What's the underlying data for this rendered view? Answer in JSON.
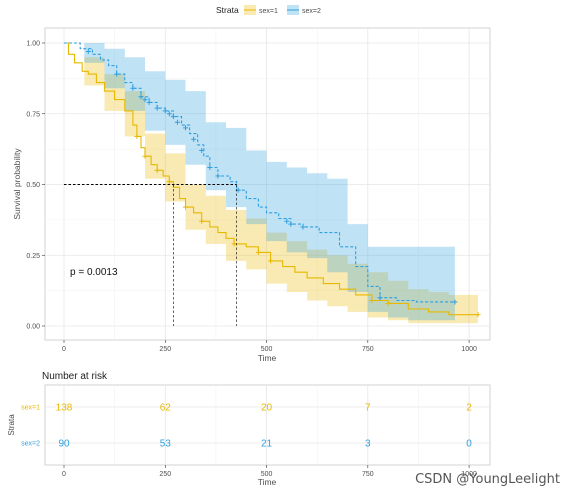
{
  "chart_data": {
    "type": "line",
    "subtype": "kaplan-meier",
    "legend": {
      "title": "Strata",
      "position": "top",
      "items": [
        {
          "name": "sex=1",
          "color": "#E7B800"
        },
        {
          "name": "sex=2",
          "color": "#2E9FDF"
        }
      ]
    },
    "xlabel": "Time",
    "ylabel": "Survival probability",
    "xlim": [
      0,
      1022
    ],
    "ylim": [
      0,
      1
    ],
    "xticks": [
      "0",
      "250",
      "500",
      "750",
      "1000"
    ],
    "yticks": [
      "0.00",
      "0.25",
      "0.50",
      "0.75",
      "1.00"
    ],
    "grid": true,
    "pvalue_label": "p = 0.0013",
    "median_line": {
      "y": 0.5,
      "x_values": [
        270,
        426
      ]
    },
    "series": [
      {
        "name": "sex=1",
        "color": "#E7B800",
        "steps": [
          [
            0,
            1.0
          ],
          [
            11,
            0.96
          ],
          [
            26,
            0.93
          ],
          [
            45,
            0.9
          ],
          [
            60,
            0.89
          ],
          [
            80,
            0.86
          ],
          [
            100,
            0.83
          ],
          [
            125,
            0.8
          ],
          [
            150,
            0.76
          ],
          [
            170,
            0.71
          ],
          [
            180,
            0.67
          ],
          [
            190,
            0.63
          ],
          [
            200,
            0.6
          ],
          [
            215,
            0.57
          ],
          [
            230,
            0.55
          ],
          [
            245,
            0.53
          ],
          [
            260,
            0.51
          ],
          [
            270,
            0.49
          ],
          [
            285,
            0.45
          ],
          [
            300,
            0.42
          ],
          [
            320,
            0.4
          ],
          [
            340,
            0.37
          ],
          [
            360,
            0.35
          ],
          [
            380,
            0.33
          ],
          [
            400,
            0.31
          ],
          [
            420,
            0.29
          ],
          [
            450,
            0.28
          ],
          [
            480,
            0.26
          ],
          [
            510,
            0.23
          ],
          [
            540,
            0.21
          ],
          [
            570,
            0.19
          ],
          [
            600,
            0.17
          ],
          [
            640,
            0.15
          ],
          [
            680,
            0.13
          ],
          [
            720,
            0.11
          ],
          [
            760,
            0.09
          ],
          [
            800,
            0.08
          ],
          [
            850,
            0.06
          ],
          [
            900,
            0.05
          ],
          [
            950,
            0.04
          ],
          [
            1022,
            0.04
          ]
        ],
        "ci_upper": [
          [
            0,
            1.0
          ],
          [
            50,
            0.95
          ],
          [
            100,
            0.89
          ],
          [
            150,
            0.83
          ],
          [
            200,
            0.68
          ],
          [
            250,
            0.61
          ],
          [
            300,
            0.5
          ],
          [
            350,
            0.46
          ],
          [
            400,
            0.41
          ],
          [
            450,
            0.38
          ],
          [
            500,
            0.33
          ],
          [
            550,
            0.3
          ],
          [
            600,
            0.27
          ],
          [
            650,
            0.25
          ],
          [
            700,
            0.22
          ],
          [
            750,
            0.19
          ],
          [
            800,
            0.16
          ],
          [
            850,
            0.13
          ],
          [
            900,
            0.12
          ],
          [
            950,
            0.11
          ],
          [
            1022,
            0.11
          ]
        ],
        "ci_lower": [
          [
            0,
            1.0
          ],
          [
            50,
            0.85
          ],
          [
            100,
            0.76
          ],
          [
            150,
            0.67
          ],
          [
            200,
            0.52
          ],
          [
            250,
            0.44
          ],
          [
            300,
            0.34
          ],
          [
            350,
            0.29
          ],
          [
            400,
            0.23
          ],
          [
            450,
            0.2
          ],
          [
            500,
            0.15
          ],
          [
            550,
            0.12
          ],
          [
            600,
            0.09
          ],
          [
            650,
            0.07
          ],
          [
            700,
            0.05
          ],
          [
            750,
            0.03
          ],
          [
            800,
            0.02
          ],
          [
            850,
            0.01
          ],
          [
            900,
            0.01
          ],
          [
            950,
            0.01
          ],
          [
            1022,
            0.01
          ]
        ],
        "censor": [
          [
            180,
            0.67
          ],
          [
            200,
            0.6
          ],
          [
            230,
            0.55
          ],
          [
            260,
            0.51
          ],
          [
            300,
            0.42
          ],
          [
            340,
            0.37
          ],
          [
            420,
            0.29
          ],
          [
            480,
            0.26
          ],
          [
            510,
            0.23
          ],
          [
            760,
            0.09
          ],
          [
            800,
            0.08
          ],
          [
            1022,
            0.04
          ]
        ]
      },
      {
        "name": "sex=2",
        "color": "#2E9FDF",
        "steps": [
          [
            0,
            1.0
          ],
          [
            40,
            0.98
          ],
          [
            70,
            0.96
          ],
          [
            90,
            0.94
          ],
          [
            110,
            0.92
          ],
          [
            130,
            0.89
          ],
          [
            150,
            0.86
          ],
          [
            170,
            0.84
          ],
          [
            190,
            0.81
          ],
          [
            210,
            0.79
          ],
          [
            230,
            0.77
          ],
          [
            250,
            0.76
          ],
          [
            270,
            0.74
          ],
          [
            290,
            0.71
          ],
          [
            310,
            0.68
          ],
          [
            330,
            0.64
          ],
          [
            345,
            0.6
          ],
          [
            360,
            0.56
          ],
          [
            380,
            0.53
          ],
          [
            410,
            0.51
          ],
          [
            426,
            0.48
          ],
          [
            450,
            0.45
          ],
          [
            480,
            0.42
          ],
          [
            500,
            0.4
          ],
          [
            530,
            0.38
          ],
          [
            560,
            0.36
          ],
          [
            590,
            0.35
          ],
          [
            630,
            0.33
          ],
          [
            680,
            0.28
          ],
          [
            720,
            0.21
          ],
          [
            750,
            0.14
          ],
          [
            780,
            0.1
          ],
          [
            820,
            0.09
          ],
          [
            870,
            0.085
          ],
          [
            965,
            0.085
          ]
        ],
        "ci_upper": [
          [
            0,
            1.0
          ],
          [
            50,
            1.0
          ],
          [
            100,
            0.98
          ],
          [
            150,
            0.95
          ],
          [
            200,
            0.9
          ],
          [
            250,
            0.87
          ],
          [
            300,
            0.83
          ],
          [
            350,
            0.72
          ],
          [
            400,
            0.7
          ],
          [
            450,
            0.62
          ],
          [
            500,
            0.58
          ],
          [
            550,
            0.56
          ],
          [
            600,
            0.54
          ],
          [
            650,
            0.52
          ],
          [
            700,
            0.36
          ],
          [
            750,
            0.28
          ],
          [
            800,
            0.28
          ],
          [
            850,
            0.28
          ],
          [
            900,
            0.28
          ],
          [
            965,
            0.28
          ]
        ],
        "ci_lower": [
          [
            0,
            1.0
          ],
          [
            50,
            0.93
          ],
          [
            100,
            0.84
          ],
          [
            150,
            0.76
          ],
          [
            200,
            0.69
          ],
          [
            250,
            0.64
          ],
          [
            300,
            0.57
          ],
          [
            350,
            0.48
          ],
          [
            400,
            0.42
          ],
          [
            450,
            0.36
          ],
          [
            500,
            0.3
          ],
          [
            550,
            0.26
          ],
          [
            600,
            0.24
          ],
          [
            650,
            0.19
          ],
          [
            700,
            0.12
          ],
          [
            750,
            0.05
          ],
          [
            800,
            0.03
          ],
          [
            850,
            0.02
          ],
          [
            900,
            0.02
          ],
          [
            965,
            0.02
          ]
        ],
        "censor": [
          [
            60,
            0.97
          ],
          [
            130,
            0.89
          ],
          [
            170,
            0.84
          ],
          [
            190,
            0.81
          ],
          [
            200,
            0.8
          ],
          [
            210,
            0.79
          ],
          [
            230,
            0.77
          ],
          [
            250,
            0.76
          ],
          [
            260,
            0.75
          ],
          [
            270,
            0.74
          ],
          [
            280,
            0.72
          ],
          [
            300,
            0.7
          ],
          [
            320,
            0.66
          ],
          [
            340,
            0.62
          ],
          [
            360,
            0.56
          ],
          [
            380,
            0.53
          ],
          [
            430,
            0.48
          ],
          [
            550,
            0.37
          ],
          [
            560,
            0.36
          ],
          [
            590,
            0.35
          ],
          [
            780,
            0.1
          ],
          [
            965,
            0.085
          ]
        ]
      }
    ]
  },
  "risk_table": {
    "title": "Number at risk",
    "ylabel": "Strata",
    "xlabel": "Time",
    "times": [
      "0",
      "250",
      "500",
      "750",
      "1000"
    ],
    "rows": [
      {
        "label": "sex=1",
        "color": "#E7B800",
        "values": [
          "138",
          "62",
          "20",
          "7",
          "2"
        ]
      },
      {
        "label": "sex=2",
        "color": "#2E9FDF",
        "values": [
          "90",
          "53",
          "21",
          "3",
          "0"
        ]
      }
    ]
  },
  "watermark": "CSDN @YoungLeelight"
}
